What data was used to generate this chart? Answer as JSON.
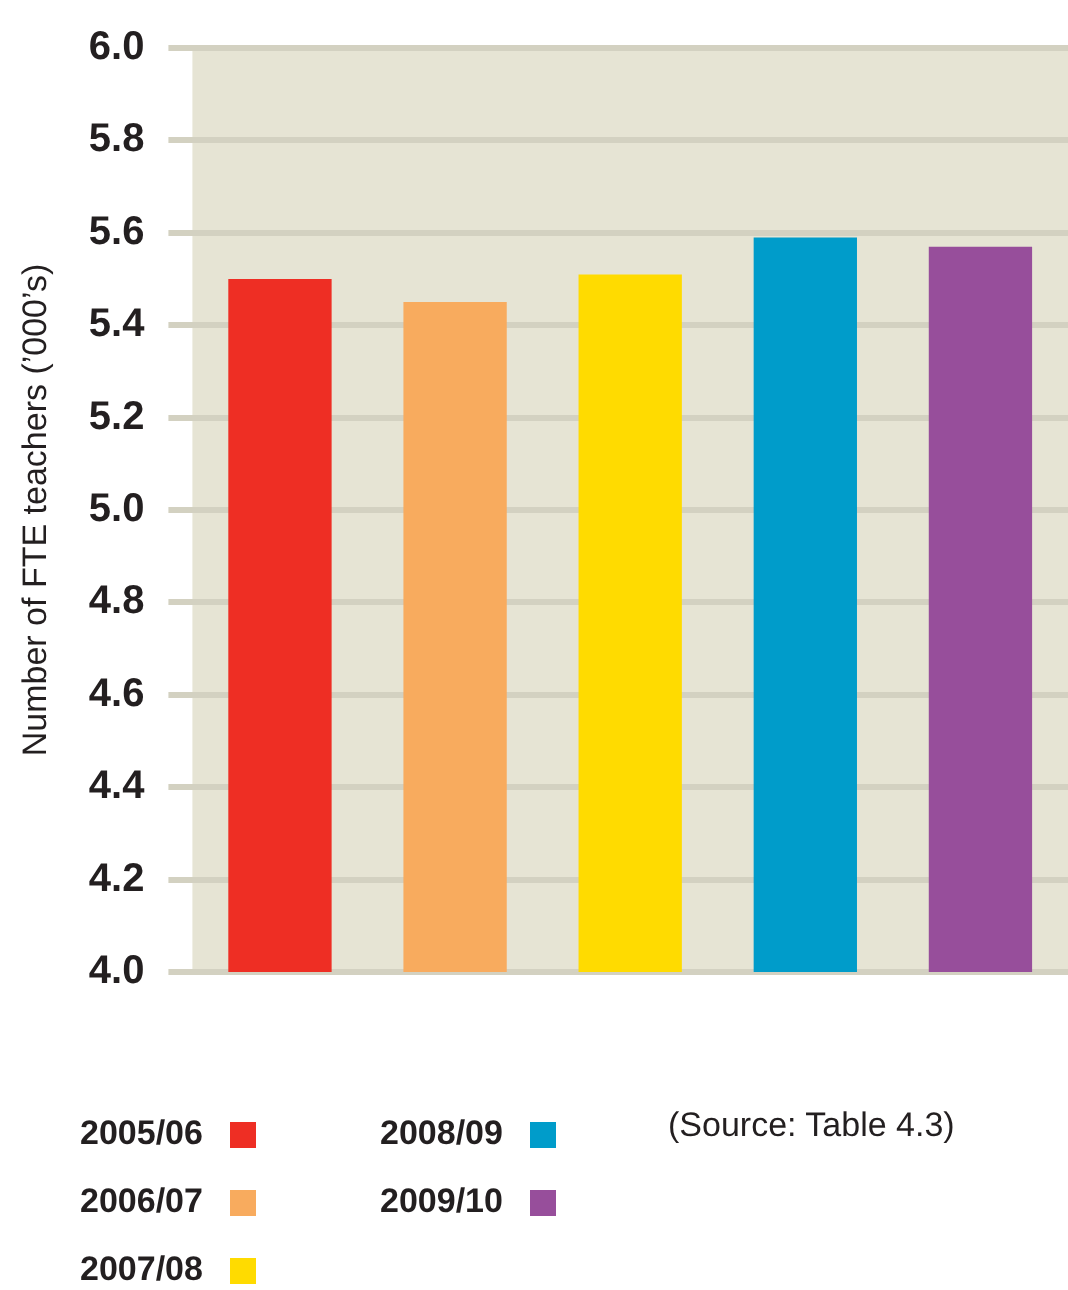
{
  "chart_data": {
    "type": "bar",
    "ylabel": "Number of FTE teachers (’000’s)",
    "categories": [
      null
    ],
    "series": [
      {
        "name": "2005/06",
        "color": "#ee2e24",
        "values": [
          5.5
        ]
      },
      {
        "name": "2006/07",
        "color": "#f8ab5e",
        "values": [
          5.45
        ]
      },
      {
        "name": "2007/08",
        "color": "#ffdb00",
        "values": [
          5.51
        ]
      },
      {
        "name": "2008/09",
        "color": "#009cca",
        "values": [
          5.59
        ]
      },
      {
        "name": "2009/10",
        "color": "#974e9b",
        "values": [
          5.57
        ]
      }
    ],
    "ylim": [
      4.0,
      6.0
    ],
    "yticks": [
      {
        "value": 4.0,
        "label": "4.0"
      },
      {
        "value": 4.2,
        "label": "4.2"
      },
      {
        "value": 4.4,
        "label": "4.4"
      },
      {
        "value": 4.6,
        "label": "4.6"
      },
      {
        "value": 4.8,
        "label": "4.8"
      },
      {
        "value": 5.0,
        "label": "5.0"
      },
      {
        "value": 5.2,
        "label": "5.2"
      },
      {
        "value": 5.4,
        "label": "5.4"
      },
      {
        "value": 5.6,
        "label": "5.6"
      },
      {
        "value": 5.8,
        "label": "5.8"
      },
      {
        "value": 6.0,
        "label": "6.0"
      }
    ],
    "grid": "y",
    "legend": "bottom",
    "tick_labels": "y",
    "annotations": [
      "(Source: Table 4.3)"
    ]
  }
}
